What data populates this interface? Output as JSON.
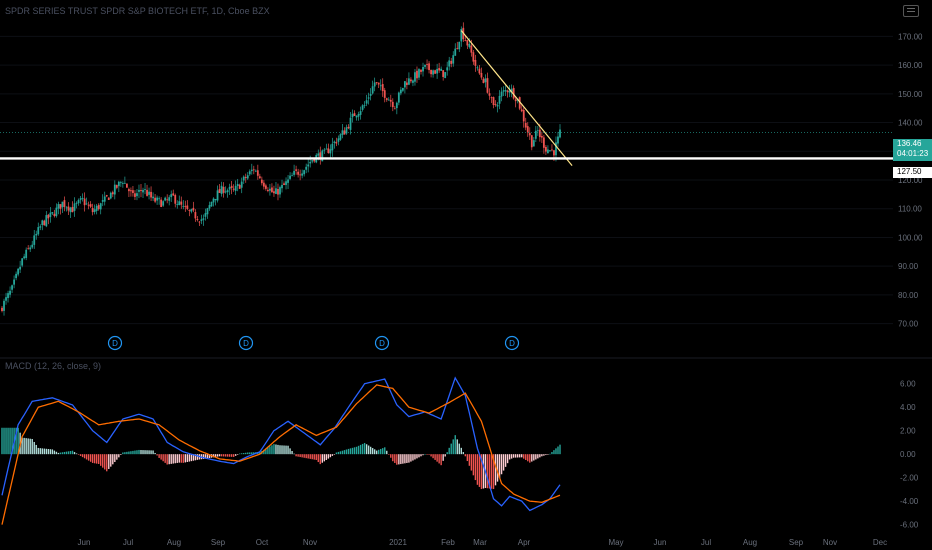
{
  "header": {
    "symbol_title": "SPDR SERIES TRUST SPDR S&P BIOTECH ETF, 1D, Cboe BZX",
    "macd_title": "MACD (12, 26, close, 9)"
  },
  "price_badge": {
    "price": "136.46",
    "countdown": "04:01:23"
  },
  "support_badge": {
    "label": "127.50"
  },
  "colors": {
    "up": "#26a69a",
    "down": "#ef5350",
    "macd": "#2962ff",
    "signal": "#ff6d00",
    "trendline": "#ffe58a",
    "support": "#ffffff",
    "dividend": "#2196f3"
  },
  "icons": [
    "menu-icon",
    "dividend-marker-icon"
  ],
  "chart_data": [
    {
      "type": "candlestick",
      "title": "SPDR SERIES TRUST SPDR S&P BIOTECH ETF, 1D, Cboe BZX",
      "y_ticks": [
        "170.00",
        "160.00",
        "150.00",
        "140.00",
        "130.00",
        "120.00",
        "110.00",
        "100.00",
        "90.00",
        "80.00",
        "70.00"
      ],
      "x_ticks": [
        "Jun",
        "Jul",
        "Aug",
        "Sep",
        "Oct",
        "Nov",
        "2021",
        "Feb",
        "Mar",
        "Apr",
        "May",
        "Jun",
        "Jul",
        "Aug",
        "Sep",
        "Nov",
        "Dec"
      ],
      "ylim": [
        65,
        175
      ],
      "current_price": 136.46,
      "support_level": 127.5,
      "trendline": {
        "from": {
          "x": "2021-02-09",
          "y": 172
        },
        "to": {
          "x": "2021-04-28",
          "y": 125
        }
      },
      "dividend_markers": [
        "Jun",
        "Sep",
        "Dec",
        "Mar"
      ],
      "dividend_label": "D",
      "close_series_anchors": [
        [
          0,
          76
        ],
        [
          5,
          82
        ],
        [
          10,
          92
        ],
        [
          15,
          98
        ],
        [
          20,
          105
        ],
        [
          25,
          108
        ],
        [
          30,
          112
        ],
        [
          35,
          110
        ],
        [
          40,
          113
        ],
        [
          45,
          109
        ],
        [
          50,
          112
        ],
        [
          55,
          116
        ],
        [
          60,
          120
        ],
        [
          65,
          114
        ],
        [
          70,
          117
        ],
        [
          75,
          113
        ],
        [
          80,
          112
        ],
        [
          85,
          114
        ],
        [
          90,
          110
        ],
        [
          95,
          108
        ],
        [
          100,
          106
        ],
        [
          105,
          114
        ],
        [
          110,
          117
        ],
        [
          115,
          116
        ],
        [
          120,
          120
        ],
        [
          125,
          124
        ],
        [
          130,
          119
        ],
        [
          135,
          115
        ],
        [
          140,
          118
        ],
        [
          145,
          122
        ],
        [
          150,
          124
        ],
        [
          155,
          128
        ],
        [
          160,
          129
        ],
        [
          165,
          133
        ],
        [
          170,
          137
        ],
        [
          175,
          143
        ],
        [
          180,
          146
        ],
        [
          185,
          154
        ],
        [
          190,
          150
        ],
        [
          195,
          146
        ],
        [
          200,
          154
        ],
        [
          205,
          156
        ],
        [
          210,
          159
        ],
        [
          215,
          158
        ],
        [
          220,
          157
        ],
        [
          225,
          165
        ],
        [
          228,
          172
        ],
        [
          232,
          166
        ],
        [
          236,
          158
        ],
        [
          240,
          154
        ],
        [
          244,
          145
        ],
        [
          248,
          150
        ],
        [
          252,
          152
        ],
        [
          256,
          148
        ],
        [
          260,
          139
        ],
        [
          263,
          133
        ],
        [
          266,
          137
        ],
        [
          270,
          131
        ],
        [
          274,
          130
        ],
        [
          277,
          136
        ]
      ],
      "total_bars": 278
    },
    {
      "type": "macd",
      "title": "MACD (12, 26, close, 9)",
      "y_ticks": [
        "6.00",
        "4.00",
        "2.00",
        "0.00",
        "-2.00",
        "-4.00",
        "-6.00"
      ],
      "ylim": [
        -6.8,
        7.0
      ],
      "macd_anchors": [
        [
          0,
          -3.5
        ],
        [
          8,
          2.5
        ],
        [
          15,
          4.5
        ],
        [
          25,
          4.8
        ],
        [
          35,
          4.2
        ],
        [
          45,
          2.0
        ],
        [
          52,
          1.0
        ],
        [
          60,
          3.0
        ],
        [
          68,
          3.4
        ],
        [
          75,
          3.0
        ],
        [
          82,
          1.0
        ],
        [
          90,
          0.2
        ],
        [
          100,
          -0.3
        ],
        [
          108,
          -0.6
        ],
        [
          115,
          -0.8
        ],
        [
          122,
          -0.2
        ],
        [
          128,
          0.2
        ],
        [
          135,
          2.0
        ],
        [
          142,
          2.8
        ],
        [
          150,
          1.8
        ],
        [
          158,
          0.8
        ],
        [
          165,
          2.2
        ],
        [
          172,
          4.0
        ],
        [
          180,
          6.0
        ],
        [
          190,
          6.4
        ],
        [
          196,
          4.2
        ],
        [
          202,
          3.2
        ],
        [
          210,
          3.6
        ],
        [
          218,
          3.0
        ],
        [
          225,
          6.5
        ],
        [
          230,
          5.0
        ],
        [
          236,
          0.5
        ],
        [
          240,
          -1.5
        ],
        [
          244,
          -3.8
        ],
        [
          248,
          -4.4
        ],
        [
          252,
          -3.6
        ],
        [
          258,
          -4.0
        ],
        [
          262,
          -4.8
        ],
        [
          268,
          -4.3
        ],
        [
          272,
          -3.8
        ],
        [
          277,
          -2.6
        ]
      ],
      "signal_anchors": [
        [
          0,
          -6.0
        ],
        [
          10,
          1.5
        ],
        [
          18,
          4.0
        ],
        [
          28,
          4.5
        ],
        [
          38,
          3.6
        ],
        [
          48,
          2.5
        ],
        [
          58,
          2.8
        ],
        [
          68,
          3.0
        ],
        [
          78,
          2.5
        ],
        [
          88,
          1.2
        ],
        [
          98,
          0.3
        ],
        [
          108,
          -0.4
        ],
        [
          118,
          -0.6
        ],
        [
          128,
          0.0
        ],
        [
          138,
          1.5
        ],
        [
          146,
          2.5
        ],
        [
          156,
          1.6
        ],
        [
          166,
          2.3
        ],
        [
          176,
          4.3
        ],
        [
          186,
          5.9
        ],
        [
          194,
          5.6
        ],
        [
          202,
          4.0
        ],
        [
          212,
          3.5
        ],
        [
          222,
          4.4
        ],
        [
          230,
          5.2
        ],
        [
          238,
          2.8
        ],
        [
          244,
          -0.5
        ],
        [
          248,
          -2.5
        ],
        [
          254,
          -3.4
        ],
        [
          262,
          -4.0
        ],
        [
          268,
          -4.1
        ],
        [
          277,
          -3.5
        ]
      ]
    }
  ]
}
